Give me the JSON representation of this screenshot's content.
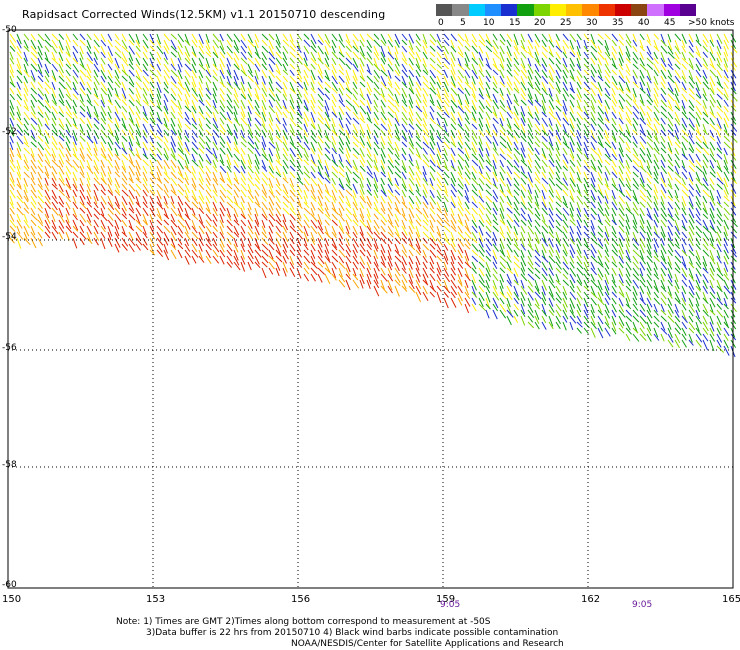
{
  "title": "Rapidsact Corrected Winds(12.5KM) v1.1 20150710 descending",
  "scale": {
    "labels": [
      "0",
      "5",
      "10",
      "15",
      "20",
      "25",
      "30",
      "35",
      "40",
      "45",
      ">50 knots"
    ],
    "colors": [
      "#555555",
      "#888888",
      "#00ccff",
      "#1f8fff",
      "#1a2fd0",
      "#10a010",
      "#7cd400",
      "#ffee00",
      "#ffc000",
      "#ff8800",
      "#ee3300",
      "#cc0000",
      "#8b4513",
      "#d070ff",
      "#a000e0",
      "#5a0090"
    ]
  },
  "map": {
    "lon_labels": [
      "150",
      "153",
      "156",
      "159",
      "162",
      "165"
    ],
    "lat_labels": [
      "-50",
      "-52",
      "-54",
      "-56",
      "-58",
      "-60"
    ],
    "pass_times": [
      "9:05",
      "9:05"
    ]
  },
  "notes": [
    "Note: 1) Times are GMT 2)Times along bottom correspond to measurement at -50S",
    "3)Data buffer is 22 hrs from 20150710 4) Black wind barbs indicate possible contamination",
    "NOAA/NESDIS/Center for Satellite Applications and Research"
  ],
  "wind_colors": {
    "blue": "#1a2fd0",
    "green": "#10a010",
    "lightgreen": "#7cd400",
    "yellow": "#ffee00",
    "orange": "#ffa500",
    "red": "#dd2200"
  }
}
